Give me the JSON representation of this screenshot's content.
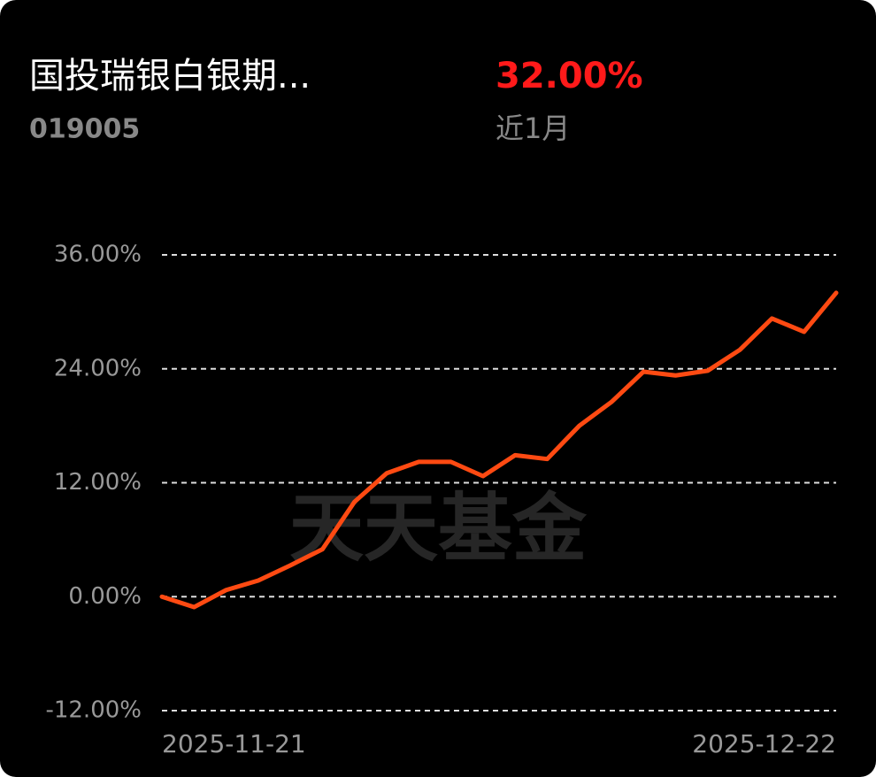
{
  "header": {
    "name": "国投瑞银白银期...",
    "code": "019005",
    "return": "32.00%",
    "period": "近1月"
  },
  "chart_data": {
    "type": "line",
    "watermark": "天天基金",
    "categories": [
      "2025-11-21",
      null,
      null,
      null,
      null,
      null,
      null,
      null,
      null,
      null,
      null,
      null,
      null,
      null,
      null,
      null,
      null,
      null,
      null,
      null,
      null,
      "2025-12-22"
    ],
    "series": [
      {
        "color": "#ff4a12",
        "values": [
          0,
          -1.1,
          0.7,
          1.7,
          3.3,
          5.0,
          10.0,
          13.0,
          14.2,
          14.2,
          12.7,
          14.9,
          14.5,
          18.0,
          20.5,
          23.7,
          23.3,
          23.8,
          26.0,
          29.3,
          27.9,
          32.0
        ]
      }
    ],
    "ylim": [
      -12,
      36
    ],
    "yticks": [
      {
        "value": 36,
        "label": "36.00%"
      },
      {
        "value": 24,
        "label": "24.00%"
      },
      {
        "value": 12,
        "label": "12.00%"
      },
      {
        "value": 0,
        "label": "0.00%"
      },
      {
        "value": -12,
        "label": "-12.00%"
      }
    ],
    "grid": true
  }
}
